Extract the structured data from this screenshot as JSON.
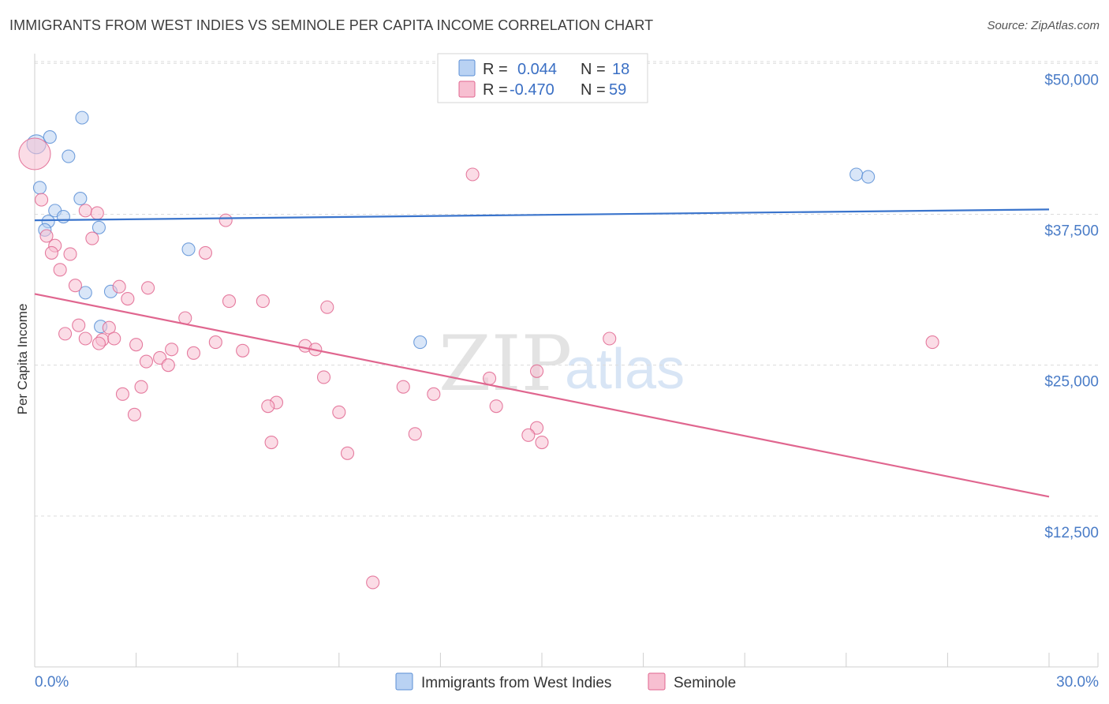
{
  "title": "IMMIGRANTS FROM WEST INDIES VS SEMINOLE PER CAPITA INCOME CORRELATION CHART",
  "source": "Source: ZipAtlas.com",
  "colors": {
    "blue": "#5b8fd6",
    "blue_fill": "#b9d2f3",
    "pink": "#e0668f",
    "pink_fill": "#f7bfd1",
    "axis_text": "#4a7cc7"
  },
  "legend": {
    "rows": [
      {
        "r_label": "R =",
        "r_value": "0.044",
        "n_label": "N =",
        "n_value": "18"
      },
      {
        "r_label": "R =",
        "r_value": "-0.470",
        "n_label": "N =",
        "n_value": "59"
      }
    ]
  },
  "watermark": {
    "zip": "ZIP",
    "atlas": "atlas"
  },
  "chart_data": {
    "type": "scatter",
    "xlabel": "",
    "ylabel": "Per Capita Income",
    "xlim": [
      0,
      30
    ],
    "ylim": [
      0,
      51000
    ],
    "x_tick_labels": [
      "0.0%",
      "30.0%"
    ],
    "y_ticks": [
      12500,
      25000,
      37500,
      50000
    ],
    "y_tick_labels": [
      "$12,500",
      "$25,000",
      "$37,500",
      "$50,000"
    ],
    "grid": true,
    "legend_position": "bottom",
    "series": [
      {
        "name": "Immigrants from West Indies",
        "color": "#5b8fd6",
        "points": [
          [
            0.05,
            43300
          ],
          [
            0.45,
            43900
          ],
          [
            1.4,
            45500
          ],
          [
            1.0,
            42300
          ],
          [
            0.15,
            39700
          ],
          [
            1.35,
            38800
          ],
          [
            0.6,
            37800
          ],
          [
            0.85,
            37300
          ],
          [
            0.4,
            36900
          ],
          [
            0.3,
            36200
          ],
          [
            1.9,
            36400
          ],
          [
            4.55,
            34600
          ],
          [
            1.5,
            31000
          ],
          [
            2.25,
            31100
          ],
          [
            1.95,
            28200
          ],
          [
            11.4,
            26900
          ],
          [
            24.3,
            40800
          ],
          [
            24.65,
            40600
          ]
        ],
        "trend": [
          [
            0,
            37000
          ],
          [
            30,
            37900
          ]
        ]
      },
      {
        "name": "Seminole",
        "color": "#e0668f",
        "points": [
          [
            0.0,
            42500
          ],
          [
            0.2,
            38700
          ],
          [
            1.5,
            37800
          ],
          [
            1.85,
            37600
          ],
          [
            0.35,
            35700
          ],
          [
            1.7,
            35500
          ],
          [
            5.65,
            37000
          ],
          [
            0.6,
            34900
          ],
          [
            0.5,
            34300
          ],
          [
            1.05,
            34200
          ],
          [
            5.05,
            34300
          ],
          [
            0.75,
            32900
          ],
          [
            1.2,
            31600
          ],
          [
            2.5,
            31500
          ],
          [
            3.35,
            31400
          ],
          [
            2.75,
            30500
          ],
          [
            5.75,
            30300
          ],
          [
            6.75,
            30300
          ],
          [
            8.65,
            29800
          ],
          [
            4.45,
            28900
          ],
          [
            1.3,
            28300
          ],
          [
            2.2,
            28100
          ],
          [
            0.9,
            27600
          ],
          [
            1.5,
            27200
          ],
          [
            2.0,
            27100
          ],
          [
            2.35,
            27200
          ],
          [
            1.9,
            26800
          ],
          [
            3.0,
            26700
          ],
          [
            5.35,
            26900
          ],
          [
            8.0,
            26600
          ],
          [
            8.3,
            26300
          ],
          [
            4.05,
            26300
          ],
          [
            4.7,
            26000
          ],
          [
            6.15,
            26200
          ],
          [
            3.7,
            25600
          ],
          [
            3.3,
            25300
          ],
          [
            3.95,
            25000
          ],
          [
            8.55,
            24000
          ],
          [
            13.45,
            23900
          ],
          [
            14.85,
            24500
          ],
          [
            17.0,
            27200
          ],
          [
            26.55,
            26900
          ],
          [
            3.15,
            23200
          ],
          [
            2.6,
            22600
          ],
          [
            10.9,
            23200
          ],
          [
            11.8,
            22600
          ],
          [
            7.15,
            21900
          ],
          [
            6.9,
            21600
          ],
          [
            9.0,
            21100
          ],
          [
            13.65,
            21600
          ],
          [
            2.95,
            20900
          ],
          [
            11.25,
            19300
          ],
          [
            14.85,
            19800
          ],
          [
            14.6,
            19200
          ],
          [
            15.0,
            18600
          ],
          [
            7.0,
            18600
          ],
          [
            9.25,
            17700
          ],
          [
            10.0,
            7000
          ],
          [
            12.95,
            40800
          ]
        ],
        "trend": [
          [
            0,
            30900
          ],
          [
            30,
            14100
          ]
        ]
      }
    ]
  }
}
